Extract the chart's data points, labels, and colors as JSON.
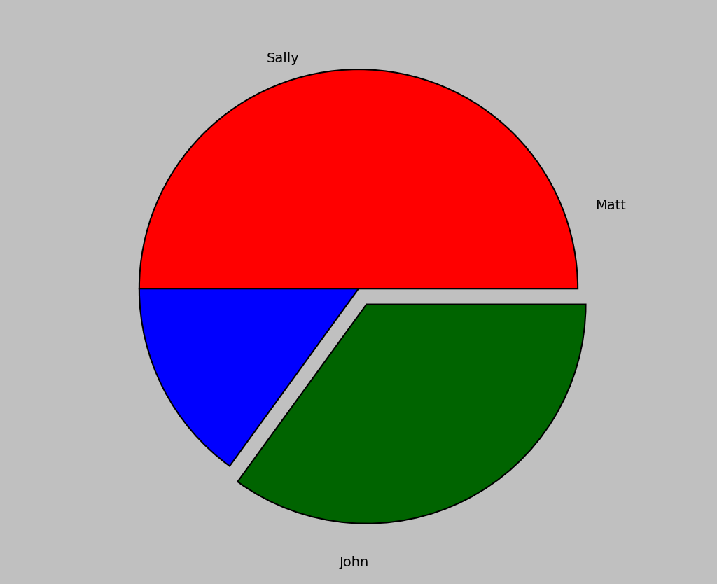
{
  "labels": [
    "John",
    "Sally",
    "Matt"
  ],
  "values": [
    50,
    35,
    15
  ],
  "colors": [
    "#FF0000",
    "#006400",
    "#0000FF"
  ],
  "explode": [
    0.0,
    0.08,
    0.0
  ],
  "background_color": "#C0C0C0",
  "label_fontsize": 14,
  "startangle": 180,
  "counterclock": false
}
